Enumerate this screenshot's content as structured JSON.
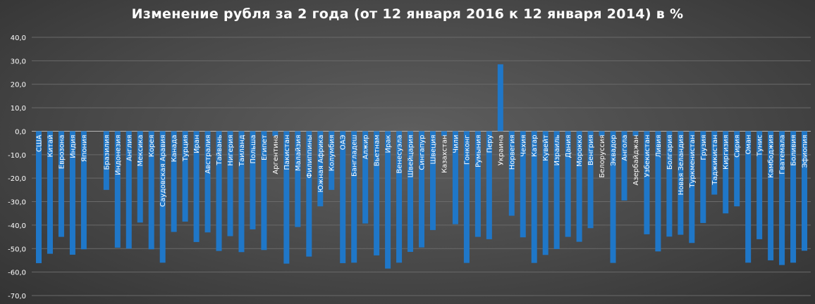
{
  "chart_data": {
    "type": "bar",
    "title": "Изменение рубля за 2 года (от 12 января 2016 к 12 января 2014) в %",
    "xlabel": "",
    "ylabel": "",
    "ylim": [
      -70,
      40
    ],
    "yticks": [
      "40,0",
      "30,0",
      "20,0",
      "10,0",
      "0,0",
      "-10,0",
      "-20,0",
      "-30,0",
      "-40,0",
      "-50,0",
      "-60,0",
      "-70,0"
    ],
    "grid": true,
    "legend": "none",
    "bar_color": "#1f77c8",
    "categories": [
      "США",
      "Китай",
      "Еврозона",
      "Индия",
      "Япония",
      "",
      "Бразилия",
      "Индонезия",
      "Англия",
      "Мексика",
      "Корея",
      "Саудовская Аравия",
      "Канада",
      "Турция",
      "Иран",
      "Австралия",
      "Тайвань",
      "Нигерия",
      "Таиланд",
      "Польша",
      "Египет",
      "Аргентина",
      "Пакистан",
      "Малайзия",
      "Филиппины",
      "Южная Африка",
      "Колумбия",
      "ОАЭ",
      "Бангладеш",
      "Алжир",
      "Вьетнам",
      "Ирак",
      "Венесуэла",
      "Швейцария",
      "Сингапур",
      "Швеция",
      "Казахстан",
      "Чили",
      "Гонконг",
      "Румыния",
      "Перу",
      "Украина",
      "Норвегия",
      "Чехия",
      "Катар",
      "Кувейт",
      "Израиль",
      "Дания",
      "Мороккo",
      "Венгрия",
      "Белоруссия",
      "Эквадор",
      "Ангола",
      "Азербайджан",
      "Узбекистан",
      "Ливия",
      "Болгария",
      "Новая Зеландия",
      "Туркменистан",
      "Грузия",
      "Таджикистан",
      "Киргизия",
      "Сирия",
      "Оман",
      "Тунис",
      "Камбоджия",
      "Гватемала",
      "Боливия",
      "Эфиопия"
    ],
    "values": [
      -56.2,
      -52.2,
      -45.0,
      -52.6,
      -50.3,
      null,
      -25.0,
      -49.6,
      -50.0,
      -38.9,
      -50.3,
      -56.0,
      -42.9,
      -38.5,
      -47.2,
      -43.1,
      -51.0,
      -44.7,
      -51.5,
      -41.8,
      -50.6,
      -2.0,
      -56.4,
      -40.8,
      -53.4,
      -32.0,
      -25.0,
      -56.2,
      -56.0,
      -39.3,
      -52.9,
      -58.5,
      -56.0,
      -51.4,
      -49.5,
      -42.1,
      -2.0,
      -39.6,
      -56.1,
      -45.0,
      -46.0,
      28.5,
      -36.0,
      -45.2,
      -56.1,
      -52.7,
      -50.2,
      -45.0,
      -47.1,
      -41.3,
      -2.0,
      -56.1,
      -29.5,
      -2.0,
      -43.9,
      -51.2,
      -44.9,
      -44.1,
      -47.6,
      -39.1,
      -27.0,
      -35.0,
      -32.0,
      -56.0,
      -46.0,
      -55.0,
      -57.0,
      -56.0,
      -50.9
    ]
  }
}
